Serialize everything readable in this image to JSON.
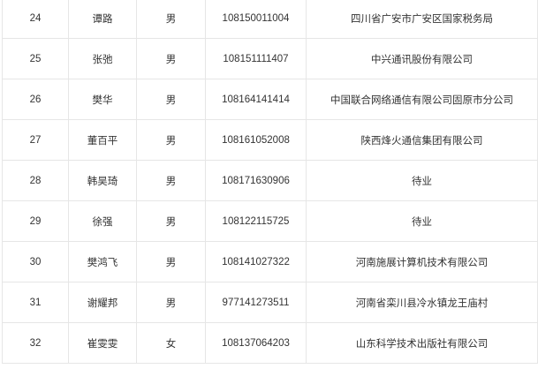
{
  "rows": [
    {
      "no": "24",
      "name": "谭路",
      "gender": "男",
      "id": "108150011004",
      "org": "四川省广安市广安区国家税务局"
    },
    {
      "no": "25",
      "name": "张弛",
      "gender": "男",
      "id": "108151111407",
      "org": "中兴通讯股份有限公司"
    },
    {
      "no": "26",
      "name": "樊华",
      "gender": "男",
      "id": "108164141414",
      "org": "中国联合网络通信有限公司固原市分公司"
    },
    {
      "no": "27",
      "name": "董百平",
      "gender": "男",
      "id": "108161052008",
      "org": "陕西烽火通信集团有限公司"
    },
    {
      "no": "28",
      "name": "韩昊琦",
      "gender": "男",
      "id": "108171630906",
      "org": "待业"
    },
    {
      "no": "29",
      "name": "徐强",
      "gender": "男",
      "id": "108122115725",
      "org": "待业"
    },
    {
      "no": "30",
      "name": "樊鸿飞",
      "gender": "男",
      "id": "108141027322",
      "org": "河南施展计算机技术有限公司"
    },
    {
      "no": "31",
      "name": "谢耀邦",
      "gender": "男",
      "id": "977141273511",
      "org": "河南省栾川县冷水镇龙王庙村"
    },
    {
      "no": "32",
      "name": "崔雯雯",
      "gender": "女",
      "id": "108137064203",
      "org": "山东科学技术出版社有限公司"
    }
  ]
}
